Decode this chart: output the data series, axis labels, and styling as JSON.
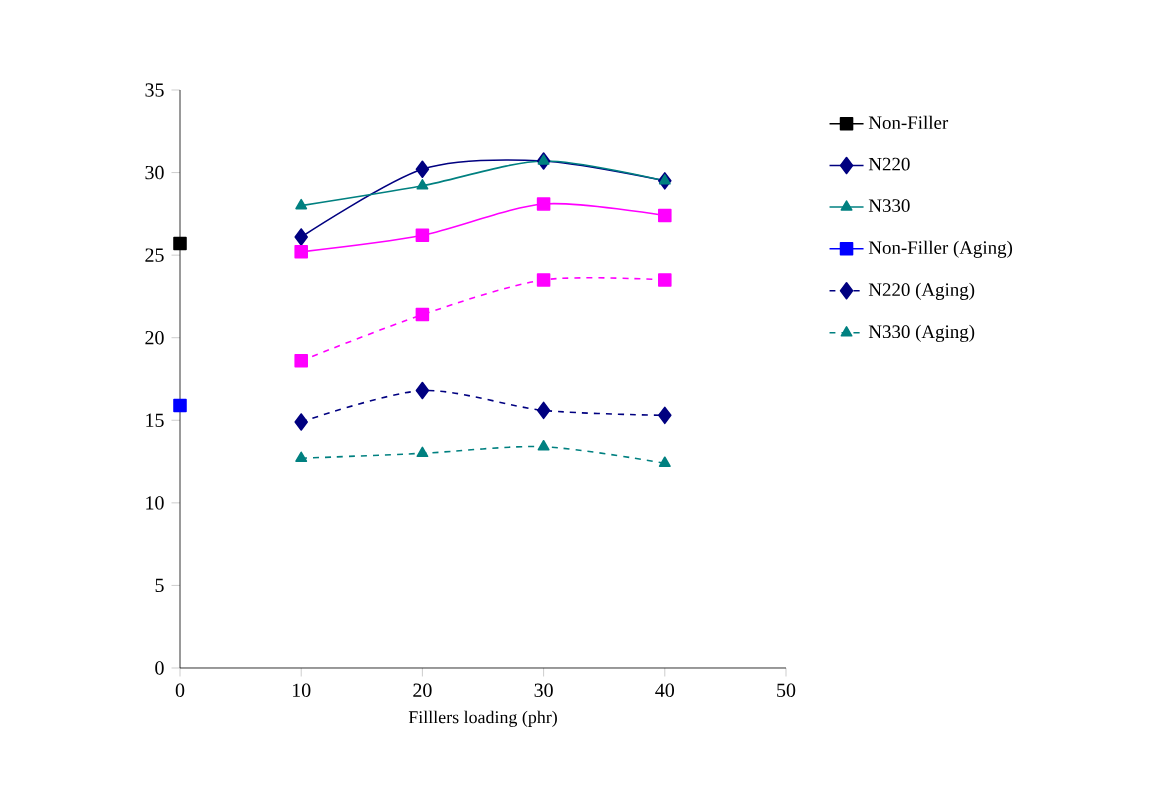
{
  "chart_data": {
    "type": "line",
    "xlabel": "Filllers loading (phr)",
    "xlim": [
      0,
      50
    ],
    "xticks": [
      0,
      10,
      20,
      30,
      40,
      50
    ],
    "ylim": [
      0,
      35
    ],
    "yticks": [
      0,
      5,
      10,
      15,
      20,
      25,
      30,
      35
    ],
    "grid": false,
    "legend": "right",
    "series": [
      {
        "name": "Non-Filler",
        "color": "#000000",
        "marker": "square",
        "line_style": "solid",
        "x": [
          0
        ],
        "values": [
          25.7
        ]
      },
      {
        "name": "N220",
        "color": "#000080",
        "marker": "diamond",
        "line_style": "solid",
        "x": [
          10,
          20,
          30,
          40
        ],
        "values": [
          26.1,
          30.2,
          30.7,
          29.5
        ]
      },
      {
        "name": "N330",
        "color": "#008080",
        "marker": "triangle",
        "line_style": "solid",
        "x": [
          10,
          20,
          30,
          40
        ],
        "values": [
          28.0,
          29.2,
          30.7,
          29.5
        ]
      },
      {
        "color": "#ff00ff",
        "marker": "square",
        "line_style": "solid",
        "x": [
          10,
          20,
          30,
          40
        ],
        "values": [
          25.2,
          26.2,
          28.1,
          27.4
        ]
      },
      {
        "name": "Non-Filler (Aging)",
        "color": "#0000ff",
        "marker": "square",
        "line_style": "solid",
        "x": [
          0
        ],
        "values": [
          15.9
        ]
      },
      {
        "name": "N220 (Aging)",
        "color": "#000080",
        "marker": "diamond",
        "line_style": "dashed",
        "x": [
          10,
          20,
          30,
          40
        ],
        "values": [
          14.9,
          16.8,
          15.6,
          15.3
        ]
      },
      {
        "name": "N330 (Aging)",
        "color": "#008080",
        "marker": "triangle",
        "line_style": "dashed",
        "x": [
          10,
          20,
          30,
          40
        ],
        "values": [
          12.7,
          13.0,
          13.4,
          12.4
        ]
      },
      {
        "color": "#ff00ff",
        "marker": "square",
        "line_style": "dashed",
        "x": [
          10,
          20,
          30,
          40
        ],
        "values": [
          18.6,
          21.4,
          23.5,
          23.5
        ]
      }
    ]
  }
}
